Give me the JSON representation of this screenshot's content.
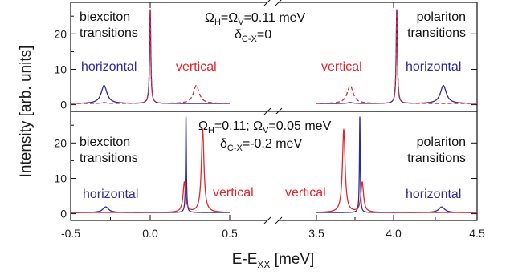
{
  "chart_data": {
    "type": "line",
    "xlabel": "E-E",
    "xlabel_sub": "XX",
    "xlabel_unit": " [meV]",
    "ylabel": "Intensity [arb. units]",
    "colors": {
      "horizontal": "#2b2b9a",
      "vertical": "#e3262b"
    },
    "x_axis": {
      "broken": true,
      "left_segment": [
        -0.5,
        0.5
      ],
      "right_segment": [
        3.5,
        4.5
      ],
      "ticks_left": [
        "-0.5",
        "0.0",
        "0.5"
      ],
      "ticks_right": [
        "3.5",
        "4.0",
        "4.5"
      ]
    },
    "panels": [
      {
        "ylim": [
          -2,
          27
        ],
        "yticks": [
          "0",
          "10",
          "20"
        ],
        "params_line1": {
          "a": "Ω",
          "a_sub": "H",
          "b": "=Ω",
          "b_sub": "V",
          "c": "=0.11 meV"
        },
        "params_line2": {
          "a": "δ",
          "a_sub": "C-X",
          "c": "=0"
        },
        "labels": {
          "biexciton_1": "biexciton",
          "biexciton_2": "transitions",
          "polariton_1": "polariton",
          "polariton_2": "transitions",
          "horizontal_left": "horizontal",
          "vertical_left": "vertical",
          "vertical_right": "vertical",
          "horizontal_right": "horizontal"
        },
        "series": [
          {
            "name": "horizontal",
            "baseline": 0.1,
            "peaks": [
              {
                "x": -0.29,
                "height": 4.8,
                "width": 0.022
              },
              {
                "x": 0.0,
                "height": 25.0,
                "width": 0.0045
              },
              {
                "x": 3.71,
                "height": 0.25,
                "width": 0.02
              },
              {
                "x": 4.0,
                "height": 25.0,
                "width": 0.0045
              },
              {
                "x": 4.29,
                "height": 4.8,
                "width": 0.022
              }
            ]
          },
          {
            "name": "vertical",
            "baseline": 0.1,
            "peaks": [
              {
                "x": -0.29,
                "height": 0.25,
                "width": 0.02
              },
              {
                "x": 0.0,
                "height": 25.0,
                "width": 0.0045
              },
              {
                "x": 0.29,
                "height": 4.8,
                "width": 0.022
              },
              {
                "x": 3.71,
                "height": 4.8,
                "width": 0.022
              },
              {
                "x": 4.0,
                "height": 25.0,
                "width": 0.0045
              }
            ]
          }
        ]
      },
      {
        "ylim": [
          -2,
          27
        ],
        "yticks": [
          "0",
          "10",
          "20"
        ],
        "params_line1": {
          "a": "Ω",
          "a_sub": "H",
          "b": "=0.11; Ω",
          "b_sub": "V",
          "c": "=0.05 meV"
        },
        "params_line2": {
          "a": "δ",
          "a_sub": "C-X",
          "c": "=-0.2 meV"
        },
        "labels": {
          "biexciton_1": "biexciton",
          "biexciton_2": "transitions",
          "polariton_1": "polariton",
          "polariton_2": "transitions",
          "horizontal_left": "horizontal",
          "vertical_left": "vertical",
          "vertical_right": "vertical",
          "horizontal_right": "horizontal"
        },
        "series": [
          {
            "name": "horizontal",
            "baseline": 0.1,
            "peaks": [
              {
                "x": -0.28,
                "height": 1.5,
                "width": 0.022
              },
              {
                "x": 0.225,
                "height": 25.5,
                "width": 0.003
              },
              {
                "x": 3.77,
                "height": 25.5,
                "width": 0.003
              },
              {
                "x": 4.28,
                "height": 1.5,
                "width": 0.022
              }
            ]
          },
          {
            "name": "vertical",
            "baseline": 0.1,
            "peaks": [
              {
                "x": 0.215,
                "height": 8.0,
                "width": 0.01
              },
              {
                "x": 0.33,
                "height": 22.0,
                "width": 0.01
              },
              {
                "x": 3.67,
                "height": 22.0,
                "width": 0.01
              },
              {
                "x": 3.785,
                "height": 8.0,
                "width": 0.01
              }
            ]
          }
        ]
      }
    ]
  }
}
